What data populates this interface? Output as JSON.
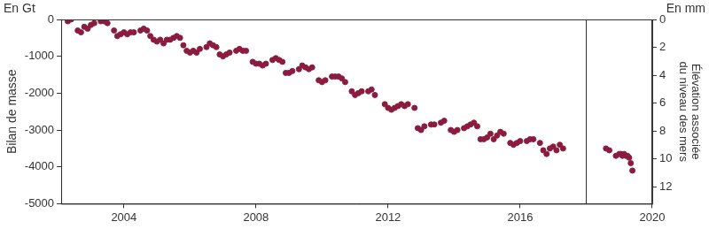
{
  "chart_data": {
    "type": "scatter",
    "y_unit": "En Gt",
    "y2_unit": "En mm",
    "y_label": "Bilan de masse",
    "y2_label": [
      "Élévation associée",
      "du niveau des mers"
    ],
    "color": "#8c1c3f",
    "marker": "circle",
    "grid": false,
    "vline_x": 2018.0,
    "xlim": [
      2002.1,
      2020
    ],
    "xticks": [
      2004,
      2008,
      2012,
      2016,
      2020
    ],
    "ylim": [
      -5000,
      0
    ],
    "yticks": [
      -5000,
      -4000,
      -3000,
      -2000,
      -1000,
      0
    ],
    "y2lim": [
      0,
      13.2
    ],
    "y2ticks": [
      0,
      2,
      4,
      6,
      8,
      10,
      12
    ],
    "x": [
      2002.3,
      2002.4,
      2002.6,
      2002.7,
      2002.8,
      2002.9,
      2003.0,
      2003.1,
      2003.3,
      2003.4,
      2003.5,
      2003.7,
      2003.8,
      2003.9,
      2004.0,
      2004.1,
      2004.2,
      2004.3,
      2004.5,
      2004.6,
      2004.7,
      2004.8,
      2004.9,
      2005.0,
      2005.1,
      2005.2,
      2005.3,
      2005.4,
      2005.5,
      2005.6,
      2005.7,
      2005.8,
      2005.9,
      2006.0,
      2006.1,
      2006.2,
      2006.3,
      2006.5,
      2006.6,
      2006.7,
      2006.8,
      2006.9,
      2007.0,
      2007.1,
      2007.2,
      2007.4,
      2007.5,
      2007.6,
      2007.7,
      2007.9,
      2008.0,
      2008.1,
      2008.2,
      2008.3,
      2008.5,
      2008.6,
      2008.7,
      2008.8,
      2008.9,
      2009.0,
      2009.1,
      2009.3,
      2009.4,
      2009.5,
      2009.6,
      2009.7,
      2009.9,
      2010.0,
      2010.1,
      2010.3,
      2010.4,
      2010.5,
      2010.6,
      2010.7,
      2010.9,
      2011.0,
      2011.1,
      2011.2,
      2011.4,
      2011.5,
      2011.6,
      2011.9,
      2012.0,
      2012.1,
      2012.2,
      2012.3,
      2012.4,
      2012.5,
      2012.6,
      2012.8,
      2012.9,
      2013.0,
      2013.1,
      2013.3,
      2013.4,
      2013.6,
      2013.7,
      2013.9,
      2014.0,
      2014.1,
      2014.3,
      2014.4,
      2014.5,
      2014.6,
      2014.7,
      2014.8,
      2014.9,
      2015.0,
      2015.1,
      2015.2,
      2015.3,
      2015.4,
      2015.5,
      2015.7,
      2015.8,
      2015.9,
      2016.0,
      2016.2,
      2016.3,
      2016.4,
      2016.6,
      2016.7,
      2016.8,
      2016.9,
      2017.0,
      2017.1,
      2017.2,
      2017.3,
      2018.6,
      2018.7,
      2018.9,
      2019.0,
      2019.05,
      2019.1,
      2019.15,
      2019.2,
      2019.25,
      2019.3,
      2019.35,
      2019.4
    ],
    "values": [
      -50,
      0,
      -300,
      -350,
      -200,
      -250,
      -150,
      -100,
      -50,
      -50,
      -100,
      -300,
      -450,
      -400,
      -350,
      -400,
      -350,
      -350,
      -300,
      -250,
      -300,
      -450,
      -550,
      -600,
      -550,
      -650,
      -550,
      -550,
      -500,
      -450,
      -500,
      -700,
      -850,
      -900,
      -850,
      -900,
      -800,
      -750,
      -650,
      -700,
      -750,
      -950,
      -1000,
      -950,
      -900,
      -850,
      -800,
      -850,
      -850,
      -1150,
      -1200,
      -1200,
      -1250,
      -1200,
      -1100,
      -1050,
      -1100,
      -1150,
      -1450,
      -1450,
      -1400,
      -1350,
      -1250,
      -1300,
      -1350,
      -1300,
      -1650,
      -1700,
      -1650,
      -1550,
      -1550,
      -1550,
      -1600,
      -1700,
      -1950,
      -2050,
      -2000,
      -1950,
      -1950,
      -1900,
      -2050,
      -2300,
      -2400,
      -2450,
      -2400,
      -2350,
      -2300,
      -2350,
      -2300,
      -2400,
      -2950,
      -3000,
      -2900,
      -2850,
      -2850,
      -2800,
      -2750,
      -3000,
      -3050,
      -3000,
      -2950,
      -2900,
      -2850,
      -2800,
      -2900,
      -3250,
      -3250,
      -3200,
      -3100,
      -3250,
      -3150,
      -3050,
      -3100,
      -3350,
      -3400,
      -3350,
      -3300,
      -3300,
      -3250,
      -3250,
      -3350,
      -3550,
      -3650,
      -3500,
      -3450,
      -3550,
      -3400,
      -3500,
      -3500,
      -3550,
      -3700,
      -3650,
      -3650,
      -3700,
      -3650,
      -3700,
      -3700,
      -3750,
      -3900,
      -4100
    ]
  }
}
